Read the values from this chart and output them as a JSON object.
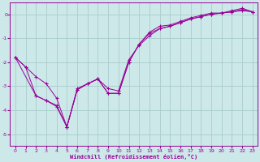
{
  "xlabel": "Windchill (Refroidissement éolien,°C)",
  "xlim": [
    -0.5,
    23.5
  ],
  "ylim": [
    -5.5,
    0.5
  ],
  "yticks": [
    0,
    -1,
    -2,
    -3,
    -4,
    -5
  ],
  "xticks": [
    0,
    1,
    2,
    3,
    4,
    5,
    6,
    7,
    8,
    9,
    10,
    11,
    12,
    13,
    14,
    15,
    16,
    17,
    18,
    19,
    20,
    21,
    22,
    23
  ],
  "bg_color": "#cce8e8",
  "grid_color": "#aacccc",
  "line_color": "#990099",
  "line1_x": [
    0,
    1,
    2,
    3,
    4,
    5,
    6,
    7,
    8,
    9,
    10,
    11,
    12,
    13,
    14,
    15,
    16,
    17,
    18,
    19,
    20,
    21,
    22,
    23
  ],
  "line1_y": [
    -1.8,
    -2.2,
    -2.6,
    -2.9,
    -3.5,
    -4.7,
    -3.1,
    -2.9,
    -2.7,
    -3.1,
    -3.2,
    -1.9,
    -1.3,
    -0.9,
    -0.6,
    -0.5,
    -0.35,
    -0.2,
    -0.1,
    0.0,
    0.05,
    0.1,
    0.15,
    0.1
  ],
  "line2_x": [
    0,
    2,
    3,
    4,
    5,
    6,
    7,
    8,
    9,
    10,
    11,
    12,
    13,
    14,
    15,
    16,
    17,
    18,
    19,
    20,
    21,
    22,
    23
  ],
  "line2_y": [
    -1.8,
    -3.4,
    -3.6,
    -3.8,
    -4.7,
    -3.15,
    -2.9,
    -2.7,
    -3.3,
    -3.3,
    -2.0,
    -1.25,
    -0.8,
    -0.6,
    -0.5,
    -0.35,
    -0.2,
    -0.1,
    0.0,
    0.05,
    0.1,
    0.2,
    0.1
  ],
  "line3_x": [
    0,
    1,
    2,
    3,
    4,
    5,
    6,
    7,
    8,
    9,
    10,
    11,
    12,
    13,
    14,
    15,
    16,
    17,
    18,
    19,
    20,
    21,
    22,
    23
  ],
  "line3_y": [
    -1.8,
    -2.2,
    -3.4,
    -3.6,
    -3.85,
    -4.7,
    -3.15,
    -2.9,
    -2.7,
    -3.3,
    -3.3,
    -2.0,
    -1.25,
    -0.75,
    -0.5,
    -0.45,
    -0.3,
    -0.15,
    -0.05,
    0.05,
    0.05,
    0.15,
    0.25,
    0.1
  ]
}
